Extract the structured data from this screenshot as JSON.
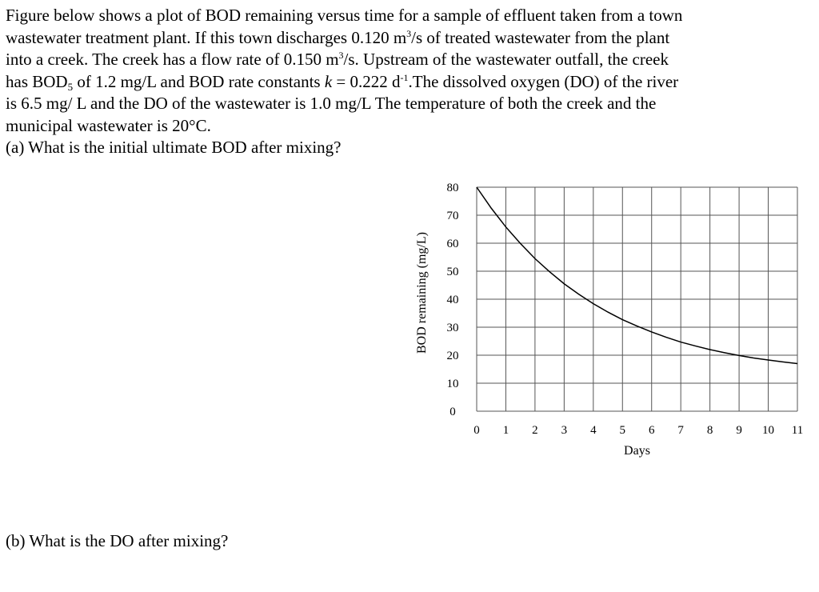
{
  "problem": {
    "line1": "Figure below shows a plot of BOD remaining versus time for a sample of effluent taken from a town",
    "line2_a": "wastewater treatment plant. If this town discharges 0.120 m",
    "line2_sup": "3",
    "line2_b": "/s of treated wastewater from the plant",
    "line3_a": "into a creek. The creek has a flow rate of 0.150 m",
    "line3_sup": "3",
    "line3_b": "/s. Upstream of the wastewater outfall, the creek",
    "line4_a": "has BOD",
    "line4_sub": "5",
    "line4_b": " of 1.2 mg/L and BOD rate constants ",
    "line4_k": "k",
    "line4_c": " = 0.222 d",
    "line4_sup": "-1",
    "line4_d": ".The dissolved oxygen (DO) of the river",
    "line5": "is 6.5 mg/ L and the DO of the wastewater is 1.0 mg/L The temperature of both the creek and the",
    "line6": "municipal wastewater is 20°C.",
    "question_a": "(a) What is the initial ultimate BOD after mixing?",
    "question_b": "(b) What is the DO after mixing?"
  },
  "chart_data": {
    "type": "line",
    "xlabel": "Days",
    "ylabel": "BOD remaining (mg/L)",
    "xlim": [
      0,
      11
    ],
    "ylim": [
      0,
      80
    ],
    "x_ticks": [
      "0",
      "1",
      "2",
      "3",
      "4",
      "5",
      "6",
      "7",
      "8",
      "9",
      "10",
      "11"
    ],
    "y_ticks": [
      "80",
      "70",
      "60",
      "50",
      "40",
      "30",
      "20",
      "10",
      "0"
    ],
    "grid": true,
    "series": [
      {
        "x": [
          0,
          0.5,
          1,
          1.5,
          2,
          2.5,
          3,
          3.5,
          4,
          4.5,
          5,
          5.5,
          6,
          6.5,
          7,
          7.5,
          8,
          8.5,
          9,
          9.5,
          10,
          10.5,
          11
        ],
        "values": [
          80,
          72.5,
          65.8,
          59.9,
          54.5,
          49.8,
          45.5,
          41.8,
          38.4,
          35.4,
          32.7,
          30.4,
          28.3,
          26.4,
          24.7,
          23.3,
          22.0,
          20.9,
          19.9,
          19.0,
          18.3,
          17.6,
          17.0
        ]
      }
    ],
    "line_color": "#000000"
  }
}
